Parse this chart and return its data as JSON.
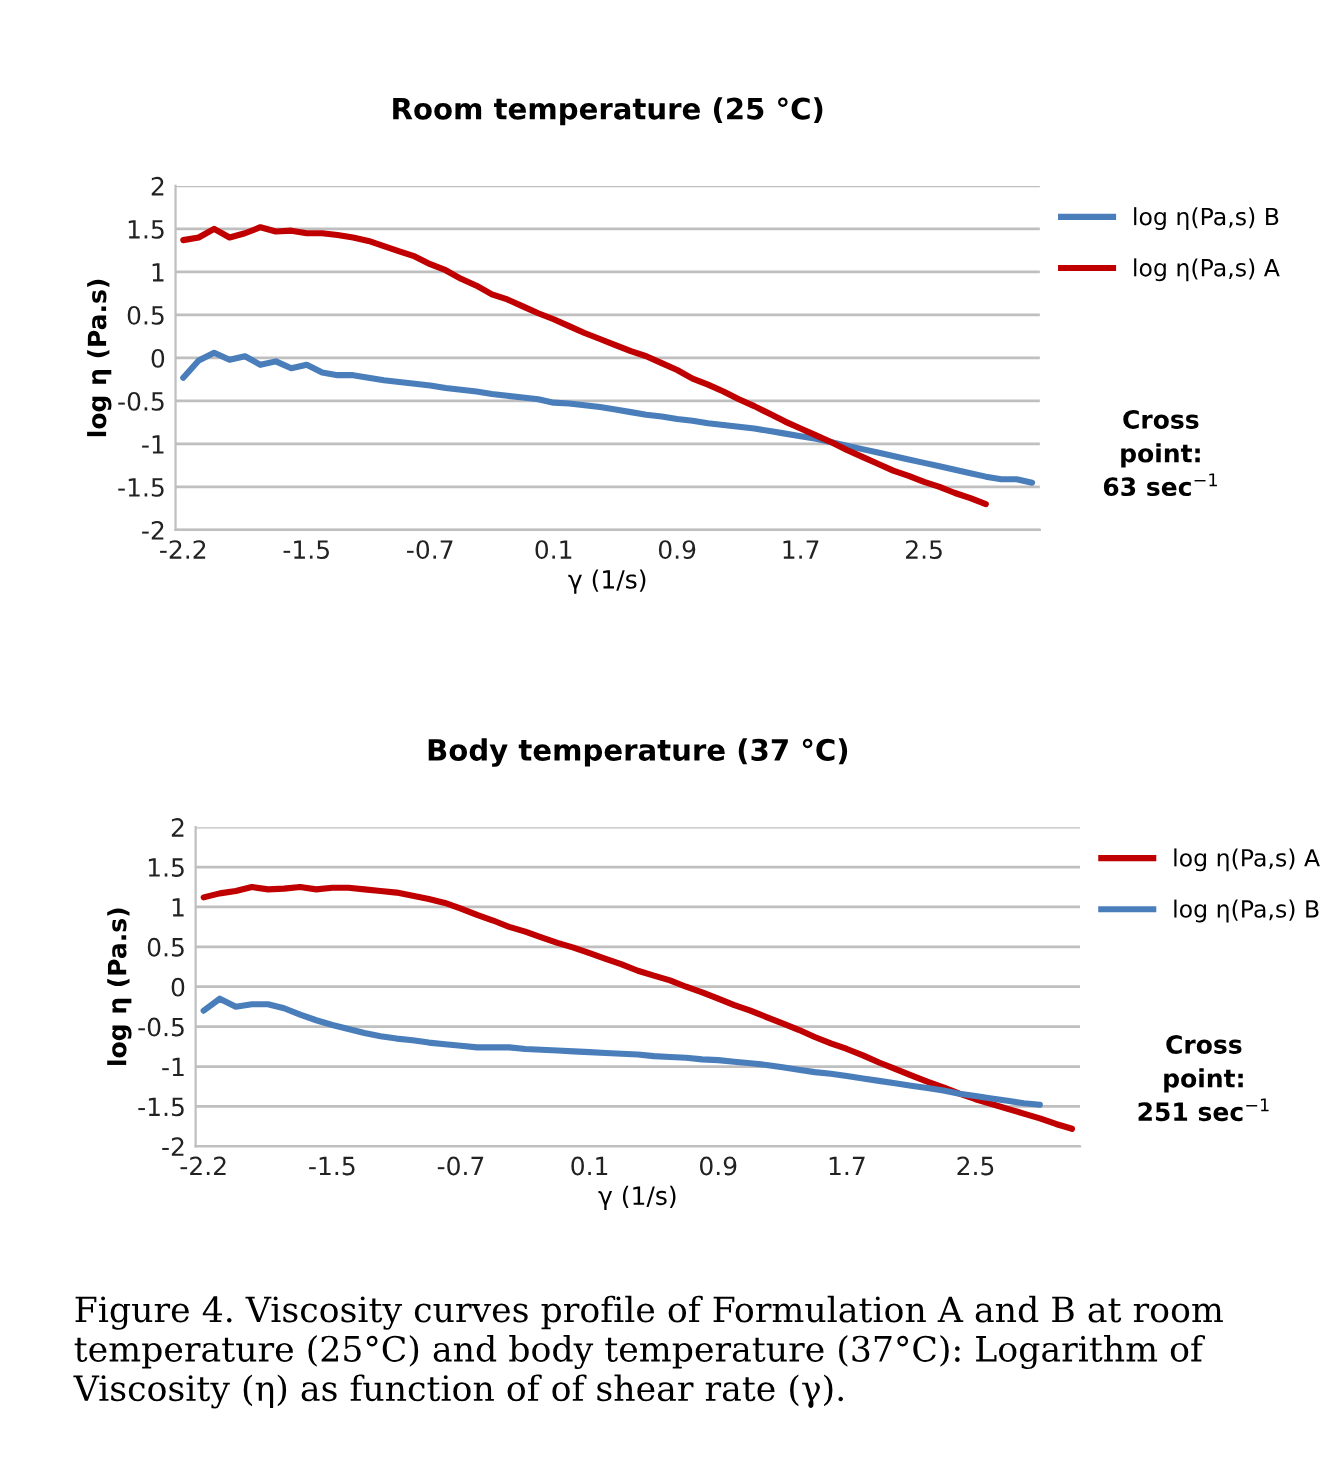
{
  "chart_data": [
    {
      "type": "line",
      "title": "Room temperature (25 °C)",
      "xlabel": "γ (1/s)",
      "ylabel": "log η (Pa.s)",
      "categories": [
        "-2.2",
        null,
        null,
        null,
        null,
        null,
        null,
        null,
        "-1.5",
        null,
        null,
        null,
        null,
        null,
        null,
        null,
        "-0.7",
        null,
        null,
        null,
        null,
        null,
        null,
        null,
        "0.1",
        null,
        null,
        null,
        null,
        null,
        null,
        null,
        "0.9",
        null,
        null,
        null,
        null,
        null,
        null,
        null,
        "1.7",
        null,
        null,
        null,
        null,
        null,
        null,
        null,
        "2.5",
        null,
        null,
        null,
        null,
        null,
        null,
        null
      ],
      "series": [
        {
          "name": "log η(Pa,s) B",
          "color": "#4a7ebb",
          "values": [
            -0.23,
            -0.03,
            0.06,
            -0.02,
            0.02,
            -0.08,
            -0.04,
            -0.12,
            -0.08,
            -0.17,
            -0.2,
            -0.2,
            -0.23,
            -0.26,
            -0.28,
            -0.3,
            -0.32,
            -0.35,
            -0.37,
            -0.39,
            -0.42,
            -0.44,
            -0.46,
            -0.48,
            -0.52,
            -0.53,
            -0.55,
            -0.57,
            -0.6,
            -0.63,
            -0.66,
            -0.68,
            -0.71,
            -0.73,
            -0.76,
            -0.78,
            -0.8,
            -0.82,
            -0.85,
            -0.88,
            -0.91,
            -0.94,
            -0.98,
            -1.02,
            -1.06,
            -1.1,
            -1.14,
            -1.18,
            -1.22,
            -1.26,
            -1.3,
            -1.34,
            -1.38,
            -1.41,
            -1.41,
            -1.45
          ]
        },
        {
          "name": "log η(Pa,s) A",
          "color": "#c00000",
          "values": [
            1.37,
            1.4,
            1.5,
            1.4,
            1.45,
            1.52,
            1.47,
            1.48,
            1.45,
            1.45,
            1.43,
            1.4,
            1.36,
            1.3,
            1.24,
            1.18,
            1.09,
            1.02,
            0.92,
            0.84,
            0.74,
            0.68,
            0.6,
            0.52,
            0.45,
            0.37,
            0.29,
            0.22,
            0.15,
            0.08,
            0.02,
            -0.06,
            -0.14,
            -0.24,
            -0.31,
            -0.39,
            -0.48,
            -0.56,
            -0.65,
            -0.74,
            -0.82,
            -0.9,
            -0.98,
            -1.07,
            -1.15,
            -1.23,
            -1.31,
            -1.37,
            -1.44,
            -1.5,
            -1.57,
            -1.63,
            -1.7,
            null,
            null,
            null
          ]
        }
      ],
      "ylim": [
        -2,
        2
      ],
      "yticks": [
        -2,
        -1.5,
        -1,
        -0.5,
        0,
        0.5,
        1,
        1.5,
        2
      ],
      "grid": "y",
      "legend": "right",
      "annotations": [
        "Cross point: 63 sec$^{−1}$"
      ]
    },
    {
      "type": "line",
      "title": "Body temperature (37 °C)",
      "xlabel": "γ (1/s)",
      "ylabel": "log η (Pa.s)",
      "categories": [
        "-2.2",
        null,
        null,
        null,
        null,
        null,
        null,
        null,
        "-1.5",
        null,
        null,
        null,
        null,
        null,
        null,
        null,
        "-0.7",
        null,
        null,
        null,
        null,
        null,
        null,
        null,
        "0.1",
        null,
        null,
        null,
        null,
        null,
        null,
        null,
        "0.9",
        null,
        null,
        null,
        null,
        null,
        null,
        null,
        "1.7",
        null,
        null,
        null,
        null,
        null,
        null,
        null,
        "2.5",
        null,
        null,
        null,
        null,
        null,
        null
      ],
      "series": [
        {
          "name": "log η(Pa,s) A",
          "color": "#c00000",
          "values": [
            1.12,
            1.17,
            1.2,
            1.25,
            1.22,
            1.23,
            1.25,
            1.22,
            1.24,
            1.24,
            1.22,
            1.2,
            1.18,
            1.14,
            1.1,
            1.05,
            0.98,
            0.9,
            0.83,
            0.75,
            0.69,
            0.62,
            0.55,
            0.49,
            0.42,
            0.35,
            0.28,
            0.2,
            0.14,
            0.08,
            0.0,
            -0.07,
            -0.15,
            -0.23,
            -0.3,
            -0.38,
            -0.46,
            -0.54,
            -0.63,
            -0.71,
            -0.78,
            -0.86,
            -0.95,
            -1.03,
            -1.11,
            -1.19,
            -1.26,
            -1.34,
            -1.41,
            -1.47,
            -1.53,
            -1.59,
            -1.65,
            -1.72,
            -1.78
          ]
        },
        {
          "name": "log η(Pa,s) B",
          "color": "#4a7ebb",
          "values": [
            -0.3,
            -0.15,
            -0.25,
            -0.22,
            -0.22,
            -0.27,
            -0.35,
            -0.42,
            -0.48,
            -0.53,
            -0.58,
            -0.62,
            -0.65,
            -0.67,
            -0.7,
            -0.72,
            -0.74,
            -0.76,
            -0.76,
            -0.76,
            -0.78,
            -0.79,
            -0.8,
            -0.81,
            -0.82,
            -0.83,
            -0.84,
            -0.85,
            -0.87,
            -0.88,
            -0.89,
            -0.91,
            -0.92,
            -0.94,
            -0.96,
            -0.98,
            -1.01,
            -1.04,
            -1.07,
            -1.09,
            -1.12,
            -1.15,
            -1.18,
            -1.21,
            -1.24,
            -1.27,
            -1.3,
            -1.34,
            -1.37,
            -1.4,
            -1.43,
            -1.46,
            -1.48,
            null,
            null
          ]
        }
      ],
      "ylim": [
        -2,
        2
      ],
      "yticks": [
        -2,
        -1.5,
        -1,
        -0.5,
        0,
        0.5,
        1,
        1.5,
        2
      ],
      "grid": "y",
      "legend": "right",
      "annotations": [
        "Cross point: 251 sec$^{−1}$",
        "Figure 4. Viscosity curves profile of Formulation A and B at room temperature (25°C) and body temperature (37°C): Logarithm of Viscosity (η) as function of of shear rate (γ)."
      ]
    }
  ]
}
